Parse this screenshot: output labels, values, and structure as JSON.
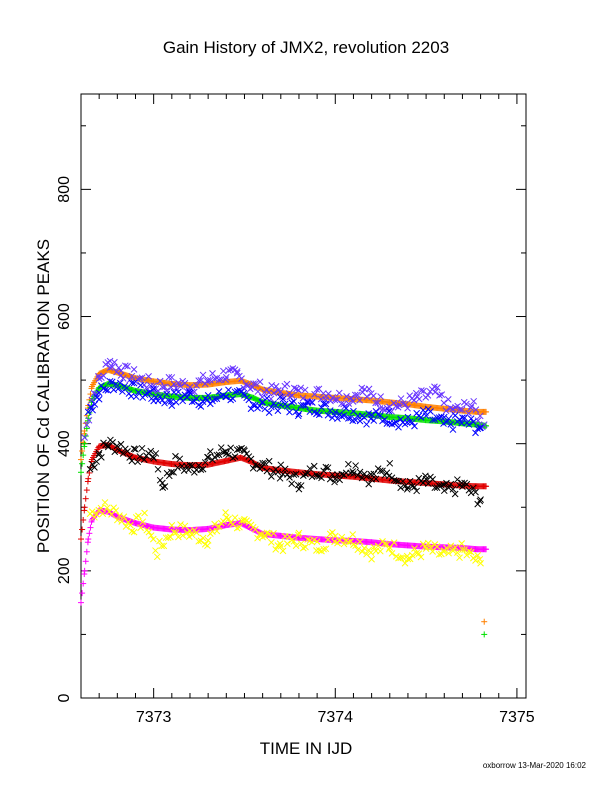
{
  "chart_data": {
    "type": "scatter",
    "title": "Gain History of JMX2, revolution 2203",
    "xlabel": "TIME IN IJD",
    "ylabel": "POSITION OF Cd CALIBRATION PEAKS",
    "xlim": [
      7372.6,
      7375.05
    ],
    "ylim": [
      0,
      950
    ],
    "x_ticks": [
      "7373",
      "7374",
      "7375"
    ],
    "y_ticks": [
      "0",
      "200",
      "400",
      "600",
      "800"
    ],
    "grid": false,
    "legend": "none",
    "series": [
      {
        "color": "#ff8000",
        "marker": "+",
        "x": [
          7372.6,
          7372.62,
          7372.64,
          7372.66,
          7372.7,
          7372.75,
          7372.8,
          7372.9,
          7373.0,
          7373.1,
          7373.2,
          7373.3,
          7373.4,
          7373.48,
          7373.55,
          7373.6,
          7373.7,
          7373.8,
          7373.9,
          7374.0,
          7374.1,
          7374.2,
          7374.3,
          7374.4,
          7374.5,
          7374.6,
          7374.7,
          7374.78,
          7374.83
        ],
        "y": [
          375,
          420,
          460,
          490,
          510,
          516,
          512,
          503,
          498,
          494,
          492,
          493,
          497,
          499,
          492,
          485,
          480,
          476,
          474,
          472,
          470,
          468,
          465,
          462,
          458,
          455,
          452,
          450,
          450
        ]
      },
      {
        "color": "#00e000",
        "marker": "+",
        "x": [
          7372.6,
          7372.62,
          7372.64,
          7372.66,
          7372.7,
          7372.75,
          7372.8,
          7372.9,
          7373.0,
          7373.1,
          7373.2,
          7373.3,
          7373.4,
          7373.48,
          7373.55,
          7373.6,
          7373.7,
          7373.8,
          7373.9,
          7374.0,
          7374.1,
          7374.2,
          7374.3,
          7374.4,
          7374.5,
          7374.6,
          7374.7,
          7374.78,
          7374.83
        ],
        "y": [
          355,
          400,
          440,
          468,
          488,
          494,
          492,
          483,
          478,
          474,
          472,
          472,
          476,
          478,
          472,
          465,
          460,
          456,
          452,
          450,
          448,
          445,
          442,
          440,
          437,
          435,
          432,
          430,
          428
        ]
      },
      {
        "color": "#e00000",
        "marker": "+",
        "x": [
          7372.6,
          7372.62,
          7372.64,
          7372.66,
          7372.7,
          7372.75,
          7372.8,
          7372.9,
          7373.0,
          7373.1,
          7373.2,
          7373.3,
          7373.4,
          7373.48,
          7373.55,
          7373.6,
          7373.7,
          7373.8,
          7373.9,
          7374.0,
          7374.1,
          7374.2,
          7374.3,
          7374.4,
          7374.5,
          7374.6,
          7374.7,
          7374.78,
          7374.83
        ],
        "y": [
          250,
          300,
          345,
          375,
          396,
          398,
          390,
          378,
          372,
          368,
          366,
          367,
          373,
          378,
          370,
          362,
          358,
          355,
          352,
          350,
          348,
          345,
          342,
          340,
          338,
          336,
          334,
          333,
          333
        ]
      },
      {
        "color": "#ff00ff",
        "marker": "+",
        "x": [
          7372.6,
          7372.62,
          7372.64,
          7372.66,
          7372.7,
          7372.75,
          7372.8,
          7372.9,
          7373.0,
          7373.1,
          7373.2,
          7373.3,
          7373.4,
          7373.48,
          7373.55,
          7373.6,
          7373.7,
          7373.8,
          7373.9,
          7374.0,
          7374.1,
          7374.2,
          7374.3,
          7374.4,
          7374.5,
          7374.6,
          7374.7,
          7374.78,
          7374.83
        ],
        "y": [
          150,
          200,
          250,
          280,
          295,
          293,
          285,
          275,
          268,
          265,
          264,
          266,
          272,
          275,
          265,
          258,
          255,
          252,
          250,
          248,
          247,
          245,
          242,
          240,
          238,
          237,
          236,
          234,
          234
        ]
      },
      {
        "color": "#6633ff",
        "marker": "x",
        "x": [
          7372.62,
          7372.66,
          7372.7,
          7372.76,
          7372.82,
          7372.9,
          7373.0,
          7373.1,
          7373.2,
          7373.3,
          7373.4,
          7373.46,
          7373.55,
          7373.65,
          7373.75,
          7373.85,
          7373.95,
          7374.05,
          7374.15,
          7374.25,
          7374.35,
          7374.45,
          7374.55,
          7374.65,
          7374.75,
          7374.82
        ],
        "y": [
          410,
          470,
          500,
          530,
          515,
          505,
          490,
          495,
          490,
          500,
          510,
          505,
          490,
          480,
          485,
          475,
          480,
          470,
          482,
          465,
          460,
          470,
          480,
          450,
          460,
          430
        ]
      },
      {
        "color": "#0000ff",
        "marker": "x",
        "x": [
          7372.64,
          7372.7,
          7372.78,
          7372.88,
          7373.0,
          7373.1,
          7373.2,
          7373.3,
          7373.4,
          7373.5,
          7373.6,
          7373.7,
          7373.8,
          7373.9,
          7374.0,
          7374.1,
          7374.2,
          7374.3,
          7374.4,
          7374.5,
          7374.6,
          7374.7,
          7374.8
        ],
        "y": [
          450,
          480,
          495,
          485,
          475,
          470,
          476,
          465,
          480,
          470,
          460,
          462,
          455,
          458,
          450,
          448,
          440,
          442,
          432,
          445,
          430,
          435,
          425
        ]
      },
      {
        "color": "#000000",
        "marker": "x",
        "x": [
          7372.65,
          7372.7,
          7372.75,
          7372.82,
          7372.9,
          7373.0,
          7373.05,
          7373.12,
          7373.2,
          7373.3,
          7373.4,
          7373.5,
          7373.6,
          7373.7,
          7373.8,
          7373.9,
          7374.0,
          7374.1,
          7374.2,
          7374.3,
          7374.4,
          7374.5,
          7374.6,
          7374.7,
          7374.8
        ],
        "y": [
          360,
          385,
          400,
          395,
          380,
          385,
          335,
          370,
          360,
          375,
          390,
          380,
          365,
          355,
          340,
          360,
          350,
          365,
          345,
          360,
          330,
          340,
          325,
          335,
          312
        ]
      },
      {
        "color": "#ffff00",
        "marker": "x",
        "x": [
          7372.65,
          7372.72,
          7372.8,
          7372.88,
          7372.95,
          7373.02,
          7373.1,
          7373.2,
          7373.3,
          7373.4,
          7373.5,
          7373.6,
          7373.7,
          7373.8,
          7373.9,
          7374.0,
          7374.1,
          7374.2,
          7374.3,
          7374.4,
          7374.5,
          7374.6,
          7374.7,
          7374.8
        ],
        "y": [
          290,
          300,
          290,
          270,
          280,
          230,
          265,
          260,
          250,
          285,
          270,
          260,
          240,
          250,
          238,
          255,
          250,
          230,
          240,
          220,
          235,
          225,
          232,
          212
        ]
      },
      {
        "color": "#ff8000",
        "marker": "+",
        "x": [
          7374.82
        ],
        "y": [
          120
        ]
      },
      {
        "color": "#00e000",
        "marker": "+",
        "x": [
          7374.82
        ],
        "y": [
          100
        ]
      }
    ]
  },
  "footer": "oxborrow 13-Mar-2020 16:02"
}
